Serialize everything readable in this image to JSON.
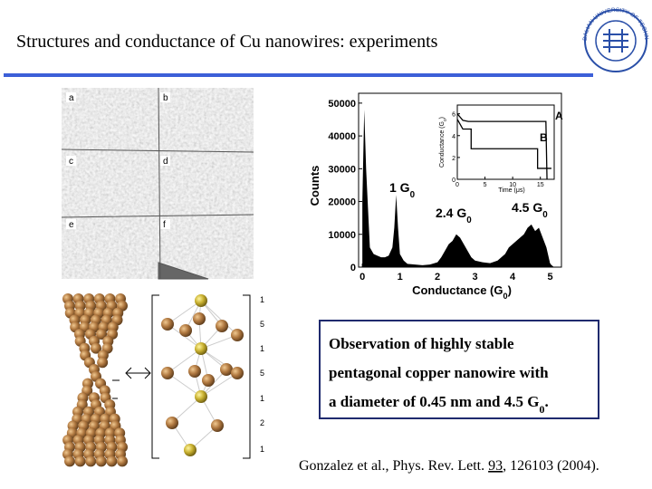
{
  "header": {
    "title": "Structures and conductance of Cu nanowires: experiments",
    "logo_text": "DALIAN UNIVERSITY OF TECHNOLOGY"
  },
  "tem_panels": [
    "a",
    "b",
    "c",
    "d",
    "e",
    "f"
  ],
  "histogram": {
    "type": "area",
    "ylabel": "Counts",
    "xlabel": {
      "text": "Conductance (G",
      "sub": "0",
      "end": ")"
    },
    "xlim": [
      -0.1,
      5.3
    ],
    "ylim": [
      0,
      53000
    ],
    "xticks": [
      0,
      1,
      2,
      3,
      4,
      5
    ],
    "yticks": [
      0,
      10000,
      20000,
      30000,
      40000,
      50000
    ],
    "color": "#000000",
    "x": [
      0,
      0.05,
      0.1,
      0.2,
      0.3,
      0.4,
      0.5,
      0.6,
      0.7,
      0.8,
      0.85,
      0.9,
      0.95,
      1.0,
      1.1,
      1.2,
      1.4,
      1.6,
      1.8,
      2.0,
      2.1,
      2.2,
      2.3,
      2.4,
      2.5,
      2.6,
      2.7,
      2.8,
      2.9,
      3.0,
      3.2,
      3.4,
      3.6,
      3.8,
      3.9,
      4.0,
      4.1,
      4.2,
      4.3,
      4.4,
      4.5,
      4.6,
      4.7,
      4.8,
      4.9,
      5.0,
      5.1
    ],
    "values": [
      20000,
      48000,
      30000,
      6000,
      4000,
      3500,
      3000,
      3000,
      3500,
      6000,
      12000,
      22000,
      12000,
      4000,
      2000,
      1000,
      800,
      600,
      800,
      1500,
      3000,
      5000,
      7000,
      8000,
      10000,
      9000,
      7000,
      5000,
      3000,
      2000,
      1500,
      1200,
      2000,
      4000,
      6000,
      7000,
      8000,
      9000,
      10000,
      12000,
      13000,
      11000,
      12000,
      9000,
      6000,
      1000,
      0
    ],
    "annotations": [
      {
        "text": "1 G",
        "sub": "0"
      },
      {
        "text": "2.4 G",
        "sub": "0"
      },
      {
        "text": "4.5 G",
        "sub": "0"
      }
    ],
    "inset": {
      "type": "line",
      "ylabel": {
        "text": "Conductance (G",
        "sub": "0",
        "end": ")"
      },
      "xlabel": "Time (μs)",
      "xlim": [
        0,
        17.5
      ],
      "ylim": [
        0,
        6.8
      ],
      "xticks": [
        0,
        5,
        10,
        15
      ],
      "yticks": [
        0,
        2,
        4,
        6
      ],
      "series": [
        {
          "name": "A",
          "color": "#000000",
          "x": [
            0,
            1,
            2,
            16,
            16.2
          ],
          "values": [
            6,
            5.4,
            5.3,
            5.3,
            0
          ]
        },
        {
          "name": "B",
          "color": "#000000",
          "x": [
            0,
            1,
            2.5,
            2.5,
            14.5,
            14.5,
            17
          ],
          "values": [
            5.5,
            4.6,
            4.6,
            2.8,
            2.8,
            1,
            1
          ]
        }
      ]
    }
  },
  "model_layers": [
    "1",
    "5",
    "1",
    "5",
    "1",
    "2",
    "1"
  ],
  "callout": {
    "lines": [
      "Observation of highly stable",
      "pentagonal copper nanowire with"
    ],
    "last": {
      "text": "a diameter of 0.45 nm and 4.5 G",
      "sub": "0",
      "end": "."
    }
  },
  "citation": {
    "before": "Gonzalez et al., Phys. Rev. Lett. ",
    "volume": "93",
    "after": ", 126103 (2004)."
  }
}
